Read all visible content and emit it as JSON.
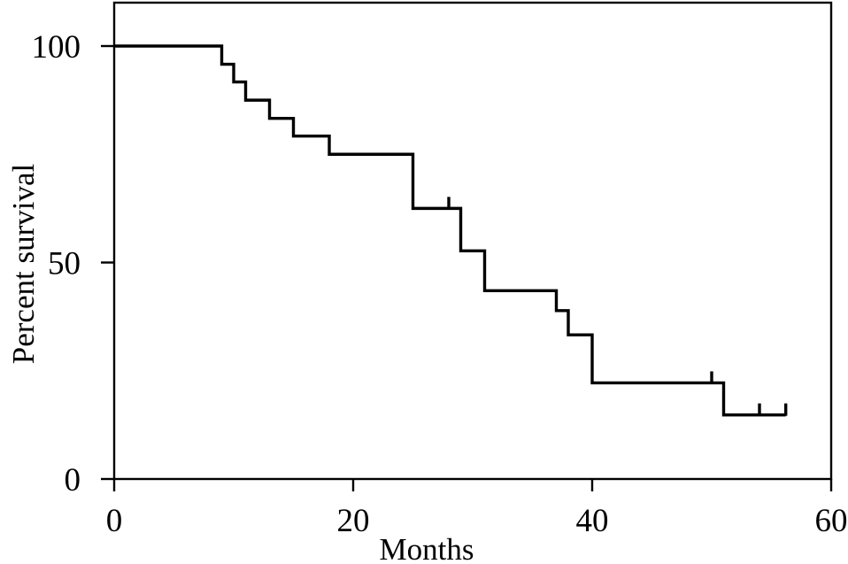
{
  "figure": {
    "background_color": "#ffffff",
    "line_color": "#000000",
    "text_color": "#000000"
  },
  "chart_data": {
    "type": "line",
    "subtype": "kaplan-meier-survival-step",
    "title": "",
    "xlabel": "Months",
    "ylabel": "Percent survival",
    "xlim": [
      0,
      60
    ],
    "ylim": [
      0,
      100
    ],
    "x_ticks": [
      0,
      20,
      40,
      60
    ],
    "y_ticks": [
      0,
      50,
      100
    ],
    "grid": false,
    "legend": false,
    "series": [
      {
        "start": {
          "month": 0,
          "percent": 100
        },
        "steps": [
          {
            "month": 9,
            "percent": 95.8
          },
          {
            "month": 10,
            "percent": 91.7
          },
          {
            "month": 11,
            "percent": 87.5
          },
          {
            "month": 13,
            "percent": 83.3
          },
          {
            "month": 15,
            "percent": 79.2
          },
          {
            "month": 18,
            "percent": 75.0
          },
          {
            "month": 25,
            "percent": 62.5
          },
          {
            "month": 29,
            "percent": 52.7
          },
          {
            "month": 31,
            "percent": 43.5
          },
          {
            "month": 37,
            "percent": 38.9
          },
          {
            "month": 38,
            "percent": 33.3
          },
          {
            "month": 40,
            "percent": 22.2
          },
          {
            "month": 51,
            "percent": 14.8
          }
        ],
        "end_month": 56.2,
        "censor_marks": [
          {
            "month": 28,
            "percent": 62.5
          },
          {
            "month": 50,
            "percent": 22.2
          },
          {
            "month": 54,
            "percent": 14.8
          },
          {
            "month": 56.2,
            "percent": 14.8
          }
        ]
      }
    ]
  }
}
